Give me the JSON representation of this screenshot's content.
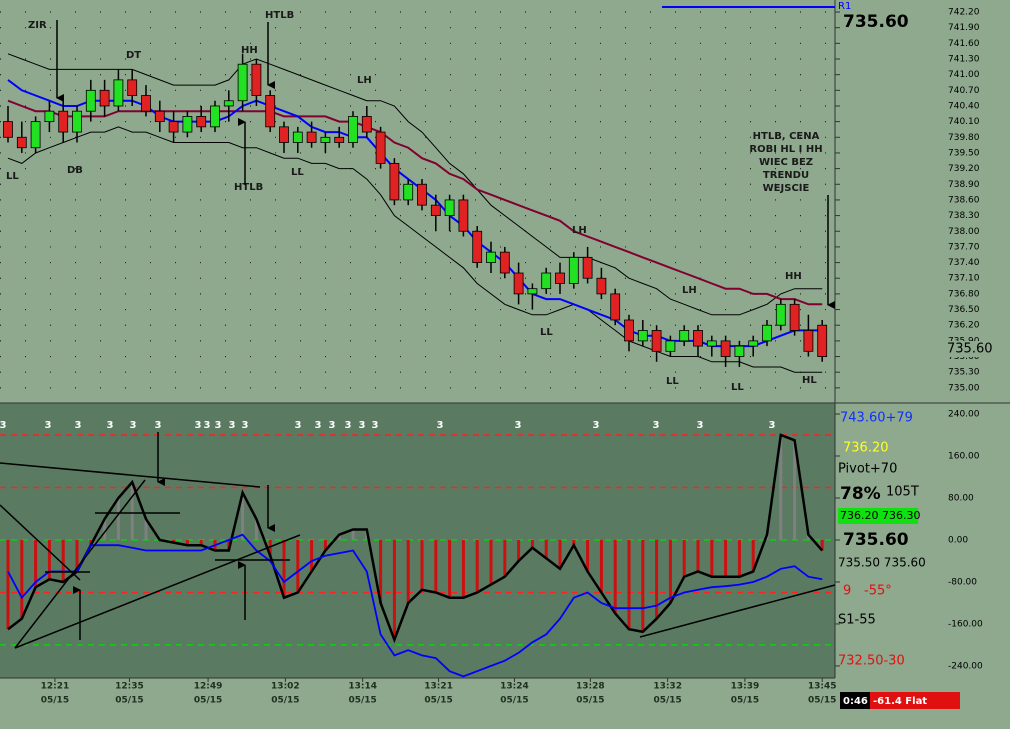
{
  "chart_data": [
    {
      "type": "candlestick",
      "x": [
        0,
        1,
        2,
        3,
        4,
        5,
        6,
        7,
        8,
        9,
        10,
        11,
        12,
        13,
        14,
        15,
        16,
        17,
        18,
        19,
        20,
        21,
        22,
        23,
        24,
        25,
        26,
        27,
        28,
        29,
        30,
        31,
        32,
        33,
        34,
        35,
        36,
        37,
        38,
        39,
        40,
        41,
        42,
        43,
        44,
        45,
        46,
        47,
        48,
        49,
        50,
        51,
        52,
        53,
        54,
        55,
        56,
        57,
        58,
        59
      ],
      "open": [
        740.1,
        739.8,
        739.6,
        740.1,
        740.3,
        739.9,
        740.3,
        740.7,
        740.4,
        740.9,
        740.6,
        740.3,
        740.1,
        739.9,
        740.2,
        740.0,
        740.4,
        740.5,
        741.2,
        740.6,
        740.0,
        739.7,
        739.9,
        739.7,
        739.8,
        739.7,
        740.2,
        739.9,
        739.3,
        738.6,
        738.9,
        738.5,
        738.3,
        738.6,
        738.0,
        737.4,
        737.6,
        737.2,
        736.8,
        736.9,
        737.2,
        737.0,
        737.5,
        737.1,
        736.8,
        736.3,
        735.9,
        736.1,
        735.7,
        735.9,
        736.1,
        735.8,
        735.9,
        735.6,
        735.8,
        735.9,
        736.2,
        736.6,
        736.1,
        736.2
      ],
      "high": [
        740.4,
        740.1,
        740.2,
        740.5,
        740.5,
        740.4,
        740.9,
        740.9,
        741.1,
        741.1,
        740.8,
        740.5,
        740.3,
        740.3,
        740.4,
        740.5,
        740.7,
        741.4,
        741.3,
        740.7,
        740.1,
        740.0,
        740.1,
        739.9,
        740.0,
        740.3,
        740.4,
        740.0,
        739.4,
        739.0,
        739.0,
        738.7,
        738.7,
        738.7,
        738.1,
        737.8,
        737.7,
        737.4,
        737.0,
        737.3,
        737.4,
        737.6,
        737.7,
        737.3,
        736.9,
        736.4,
        736.3,
        736.2,
        736.0,
        736.2,
        736.2,
        736.0,
        736.0,
        735.9,
        736.0,
        736.3,
        736.7,
        736.7,
        736.4,
        736.3
      ],
      "low": [
        739.7,
        739.5,
        739.5,
        739.9,
        739.7,
        739.7,
        740.1,
        740.2,
        740.3,
        740.4,
        740.2,
        739.9,
        739.7,
        739.8,
        739.9,
        739.9,
        740.1,
        740.3,
        740.4,
        739.9,
        739.5,
        739.5,
        739.6,
        739.5,
        739.6,
        739.6,
        739.8,
        739.2,
        738.5,
        738.5,
        738.4,
        738.0,
        738.0,
        737.9,
        737.3,
        737.2,
        737.1,
        736.6,
        736.5,
        736.8,
        736.8,
        736.9,
        737.0,
        736.7,
        736.2,
        735.7,
        735.8,
        735.5,
        735.6,
        735.8,
        735.6,
        735.6,
        735.4,
        735.4,
        735.6,
        735.8,
        736.1,
        736.0,
        735.6,
        735.5
      ],
      "close": [
        739.8,
        739.6,
        740.1,
        740.3,
        739.9,
        740.3,
        740.7,
        740.4,
        740.9,
        740.6,
        740.3,
        740.1,
        739.9,
        740.2,
        740.0,
        740.4,
        740.5,
        741.2,
        740.6,
        740.0,
        739.7,
        739.9,
        739.7,
        739.8,
        739.7,
        740.2,
        739.9,
        739.3,
        738.6,
        738.9,
        738.5,
        738.3,
        738.6,
        738.0,
        737.4,
        737.6,
        737.2,
        736.8,
        736.9,
        737.2,
        737.0,
        737.5,
        737.1,
        736.8,
        736.3,
        735.9,
        736.1,
        735.7,
        735.9,
        736.1,
        735.8,
        735.9,
        735.6,
        735.8,
        735.9,
        736.2,
        736.6,
        736.1,
        735.7,
        735.6
      ],
      "up_color": "#22e022",
      "down_color": "#e02222",
      "overlays": [
        {
          "color": "#000000",
          "values": [
            741.4,
            741.3,
            741.2,
            741.1,
            741.1,
            741.1,
            741.1,
            741.1,
            741.1,
            741.1,
            741.0,
            740.9,
            740.8,
            740.8,
            740.8,
            740.8,
            740.9,
            741.2,
            741.3,
            741.2,
            741.1,
            741.0,
            740.9,
            740.8,
            740.7,
            740.6,
            740.5,
            740.5,
            740.4,
            740.1,
            739.9,
            739.6,
            739.3,
            739.1,
            738.8,
            738.5,
            738.3,
            738.1,
            737.9,
            737.7,
            737.5,
            737.5,
            737.5,
            737.4,
            737.3,
            737.1,
            737.0,
            736.9,
            736.7,
            736.6,
            736.5,
            736.4,
            736.4,
            736.4,
            736.5,
            736.6,
            736.8,
            736.9,
            736.9,
            736.9
          ]
        },
        {
          "color": "#000000",
          "values": [
            739.4,
            739.3,
            739.5,
            739.6,
            739.7,
            739.8,
            739.9,
            739.9,
            740.0,
            739.9,
            739.9,
            739.8,
            739.7,
            739.7,
            739.7,
            739.7,
            739.7,
            739.6,
            739.6,
            739.5,
            739.4,
            739.4,
            739.3,
            739.3,
            739.2,
            739.2,
            739.0,
            738.7,
            738.3,
            738.1,
            737.9,
            737.7,
            737.5,
            737.3,
            737.0,
            736.8,
            736.6,
            736.5,
            736.4,
            736.4,
            736.5,
            736.6,
            736.5,
            736.3,
            736.1,
            735.9,
            735.8,
            735.7,
            735.6,
            735.6,
            735.6,
            735.5,
            735.5,
            735.5,
            735.4,
            735.4,
            735.4,
            735.3,
            735.3,
            735.3
          ]
        },
        {
          "color": "#800030",
          "values": [
            740.5,
            740.4,
            740.3,
            740.3,
            740.2,
            740.2,
            740.2,
            740.2,
            740.3,
            740.3,
            740.3,
            740.3,
            740.3,
            740.3,
            740.3,
            740.3,
            740.3,
            740.3,
            740.3,
            740.3,
            740.2,
            740.2,
            740.2,
            740.2,
            740.1,
            740.1,
            740.0,
            739.9,
            739.7,
            739.6,
            739.4,
            739.3,
            739.1,
            739.0,
            738.8,
            738.7,
            738.6,
            738.5,
            738.4,
            738.3,
            738.2,
            738.0,
            737.9,
            737.8,
            737.7,
            737.6,
            737.5,
            737.4,
            737.3,
            737.2,
            737.1,
            737.0,
            736.9,
            736.9,
            736.8,
            736.8,
            736.7,
            736.7,
            736.6,
            736.6
          ]
        },
        {
          "color": "#0000ff",
          "values": [
            740.9,
            740.7,
            740.6,
            740.5,
            740.4,
            740.4,
            740.5,
            740.5,
            740.5,
            740.5,
            740.4,
            740.2,
            740.1,
            740.1,
            740.1,
            740.1,
            740.2,
            740.4,
            740.5,
            740.4,
            740.3,
            740.2,
            740.0,
            739.9,
            739.9,
            739.8,
            739.8,
            739.5,
            739.2,
            739.0,
            738.8,
            738.6,
            738.3,
            738.1,
            737.8,
            737.6,
            737.4,
            737.1,
            736.8,
            736.7,
            736.7,
            736.6,
            736.5,
            736.4,
            736.3,
            736.1,
            736.0,
            736.0,
            735.9,
            735.9,
            735.9,
            735.8,
            735.8,
            735.8,
            735.8,
            735.9,
            736.0,
            736.1,
            736.1,
            736.1
          ]
        }
      ],
      "xlim": [
        -0.58,
        59.71
      ],
      "ylim": [
        734.71,
        742.43
      ],
      "grid": true,
      "yticks": [
        {
          "value": 735.0,
          "label": "735.00"
        },
        {
          "value": 735.3,
          "label": "735.30"
        },
        {
          "value": 735.6,
          "label": "735.60"
        },
        {
          "value": 735.9,
          "label": "735.90"
        },
        {
          "value": 736.2,
          "label": "736.20"
        },
        {
          "value": 736.5,
          "label": "736.50"
        },
        {
          "value": 736.8,
          "label": "736.80"
        },
        {
          "value": 737.1,
          "label": "737.10"
        },
        {
          "value": 737.4,
          "label": "737.40"
        },
        {
          "value": 737.7,
          "label": "737.70"
        },
        {
          "value": 738.0,
          "label": "738.00"
        },
        {
          "value": 738.3,
          "label": "738.30"
        },
        {
          "value": 738.6,
          "label": "738.60"
        },
        {
          "value": 738.9,
          "label": "738.90"
        },
        {
          "value": 739.2,
          "label": "739.20"
        },
        {
          "value": 739.5,
          "label": "739.50"
        },
        {
          "value": 739.8,
          "label": "739.80"
        },
        {
          "value": 740.1,
          "label": "740.10"
        },
        {
          "value": 740.4,
          "label": "740.40"
        },
        {
          "value": 740.7,
          "label": "740.70"
        },
        {
          "value": 741.0,
          "label": "741.00"
        },
        {
          "value": 741.3,
          "label": "741.30"
        },
        {
          "value": 741.6,
          "label": "741.60"
        },
        {
          "value": 741.9,
          "label": "741.90"
        },
        {
          "value": 742.2,
          "label": "742.20"
        }
      ],
      "annotations": [
        "ZIR",
        "HTLB",
        "HH",
        "DT",
        "DB",
        "LL",
        "LH",
        "LL",
        "HTLB",
        "LH",
        "LH",
        "HH",
        "LL",
        "LL",
        "LL",
        "HL"
      ],
      "note": [
        "HTLB, CENA",
        "ROBI HL I HH",
        "WIEC BEZ",
        "TRENDU",
        "WEJSCIE"
      ]
    },
    {
      "type": "line",
      "x": [
        0,
        1,
        2,
        3,
        4,
        5,
        6,
        7,
        8,
        9,
        10,
        11,
        12,
        13,
        14,
        15,
        16,
        17,
        18,
        19,
        20,
        21,
        22,
        23,
        24,
        25,
        26,
        27,
        28,
        29,
        30,
        31,
        32,
        33,
        34,
        35,
        36,
        37,
        38,
        39,
        40,
        41,
        42,
        43,
        44,
        45,
        46,
        47,
        48,
        49,
        50,
        51,
        52,
        53,
        54,
        55,
        56,
        57,
        58,
        59
      ],
      "series": [
        {
          "color": "#000000",
          "histogram": true,
          "values": [
            -170,
            -150,
            -90,
            -75,
            -80,
            -60,
            -10,
            40,
            80,
            110,
            40,
            0,
            -5,
            -10,
            -10,
            -20,
            -20,
            90,
            40,
            -30,
            -110,
            -100,
            -60,
            -20,
            10,
            20,
            20,
            -120,
            -190,
            -120,
            -95,
            -100,
            -110,
            -110,
            -100,
            -85,
            -70,
            -40,
            -15,
            -35,
            -55,
            -10,
            -60,
            -100,
            -140,
            -170,
            -175,
            -150,
            -120,
            -70,
            -60,
            -70,
            -70,
            -70,
            -60,
            10,
            200,
            190,
            10,
            -20
          ]
        },
        {
          "color": "#0000ff",
          "values": [
            -60,
            -110,
            -80,
            -60,
            -60,
            -60,
            -10,
            -10,
            -10,
            -15,
            -20,
            -20,
            -20,
            -20,
            -20,
            -10,
            0,
            10,
            -20,
            -40,
            -80,
            -60,
            -40,
            -30,
            -25,
            -20,
            -60,
            -180,
            -220,
            -210,
            -220,
            -225,
            -250,
            -260,
            -250,
            -240,
            -230,
            -215,
            -195,
            -180,
            -150,
            -110,
            -100,
            -120,
            -130,
            -130,
            -130,
            -125,
            -110,
            -100,
            -95,
            -90,
            -88,
            -85,
            -80,
            -70,
            -55,
            -50,
            -70,
            -75
          ]
        }
      ],
      "up_color": "#808080",
      "down_color": "#cc1010",
      "levels": [
        {
          "value": 200,
          "color": "#ff2020"
        },
        {
          "value": 100,
          "color": "#ff2020"
        },
        {
          "value": 0,
          "color": "#10d010"
        },
        {
          "value": -100,
          "color": "#ff2020"
        },
        {
          "value": -200,
          "color": "#10d010"
        }
      ],
      "xlim": [
        -0.58,
        59.71
      ],
      "ylim": [
        -263,
        261
      ],
      "yticks": [
        {
          "value": 240,
          "label": "240.00"
        },
        {
          "value": 160,
          "label": "160.00"
        },
        {
          "value": 80,
          "label": "80.00"
        },
        {
          "value": 0,
          "label": "0.00"
        },
        {
          "value": -80,
          "label": "-80.00"
        },
        {
          "value": -160,
          "label": "-160.00"
        },
        {
          "value": -240,
          "label": "-240.00"
        }
      ],
      "xticks": [
        {
          "value": 3.4,
          "label": "12:21"
        },
        {
          "value": 8.8,
          "label": "12:35"
        },
        {
          "value": 14.5,
          "label": "12:49"
        },
        {
          "value": 20.1,
          "label": "13:02"
        },
        {
          "value": 25.7,
          "label": "13:14"
        },
        {
          "value": 31.2,
          "label": "13:21"
        },
        {
          "value": 36.7,
          "label": "13:24"
        },
        {
          "value": 42.2,
          "label": "13:28"
        },
        {
          "value": 47.8,
          "label": "13:32"
        },
        {
          "value": 53.4,
          "label": "13:39"
        },
        {
          "value": 59.0,
          "label": "13:45"
        }
      ],
      "xtick_dates": [
        "05/15",
        "05/15",
        "05/15",
        "05/15",
        "05/15",
        "05/15",
        "05/15",
        "05/15",
        "05/15",
        "05/15",
        "05/15"
      ],
      "markers": [
        "3",
        "3",
        "3",
        "3",
        "3",
        "3",
        "3",
        "3",
        "3",
        "3",
        "3",
        "3",
        "3",
        "3",
        "3",
        "3",
        "3",
        "3",
        "3",
        "3",
        "3",
        "3",
        "3"
      ]
    }
  ],
  "status": {
    "r1": "R1",
    "price": "735.60",
    "price_tag": "735.60",
    "r1_text": "743.60+79",
    "pivot_price": "736.20",
    "pivot_text": "Pivot+70",
    "percent": "78%",
    "ticks": "105T",
    "bid_ask": "736.20 736.30",
    "last": "735.60",
    "range": "735.50 735.60",
    "angle_a": "9",
    "angle_b": "-55°",
    "s1": "S1-55",
    "s2": "732.50-30",
    "timer": "0:46",
    "trend": "-61.4 Flat"
  }
}
